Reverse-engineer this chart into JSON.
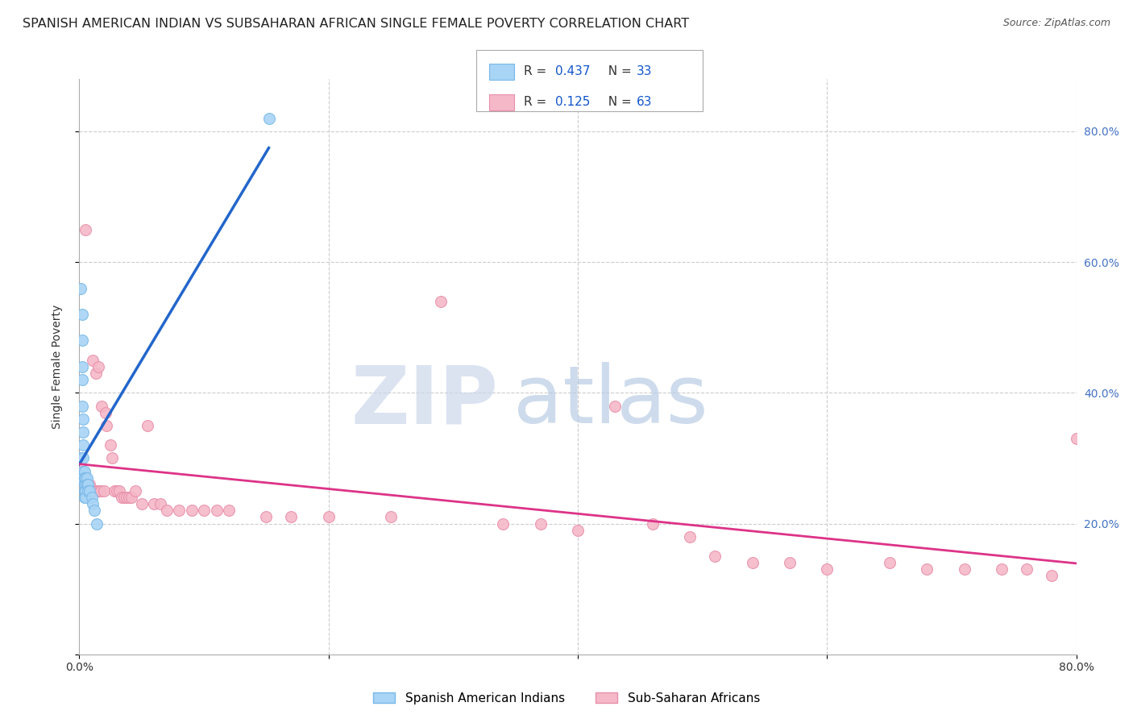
{
  "title": "SPANISH AMERICAN INDIAN VS SUBSAHARAN AFRICAN SINGLE FEMALE POVERTY CORRELATION CHART",
  "source": "Source: ZipAtlas.com",
  "ylabel": "Single Female Poverty",
  "series1_label": "Spanish American Indians",
  "series2_label": "Sub-Saharan Africans",
  "series1_color": "#a8d4f5",
  "series2_color": "#f5b8c8",
  "series1_edge_color": "#7ab8e8",
  "series2_edge_color": "#e890aa",
  "trend1_color": "#2266cc",
  "trend2_color": "#dd3388",
  "watermark_zip_color": "#ccd8ec",
  "watermark_atlas_color": "#b8cce4",
  "grid_color": "#cccccc",
  "background_color": "#ffffff",
  "title_fontsize": 11.5,
  "axis_label_fontsize": 10,
  "tick_fontsize": 10,
  "right_tick_color": "#4472C4",
  "xlim": [
    0.0,
    0.8
  ],
  "ylim": [
    0.0,
    0.88
  ],
  "xticks": [
    0.0,
    0.2,
    0.4,
    0.6,
    0.8
  ],
  "yticks": [
    0.0,
    0.2,
    0.4,
    0.6,
    0.8
  ],
  "legend_R1": "0.437",
  "legend_N1": "33",
  "legend_R2": "0.125",
  "legend_N2": "63",
  "legend_text_color": "#333333",
  "legend_val_color": "#1155cc",
  "series1_x": [
    0.001,
    0.001,
    0.001,
    0.002,
    0.002,
    0.002,
    0.002,
    0.002,
    0.003,
    0.003,
    0.003,
    0.003,
    0.003,
    0.003,
    0.004,
    0.004,
    0.004,
    0.004,
    0.004,
    0.005,
    0.005,
    0.005,
    0.005,
    0.006,
    0.006,
    0.007,
    0.007,
    0.008,
    0.01,
    0.011,
    0.012,
    0.014,
    0.152
  ],
  "series1_y": [
    0.56,
    0.3,
    0.27,
    0.52,
    0.48,
    0.44,
    0.42,
    0.38,
    0.36,
    0.34,
    0.32,
    0.3,
    0.28,
    0.27,
    0.28,
    0.27,
    0.26,
    0.25,
    0.24,
    0.27,
    0.26,
    0.25,
    0.24,
    0.27,
    0.26,
    0.26,
    0.25,
    0.25,
    0.24,
    0.23,
    0.22,
    0.2,
    0.82
  ],
  "series2_x": [
    0.002,
    0.003,
    0.004,
    0.005,
    0.006,
    0.007,
    0.008,
    0.009,
    0.01,
    0.011,
    0.012,
    0.013,
    0.014,
    0.015,
    0.016,
    0.017,
    0.018,
    0.02,
    0.021,
    0.022,
    0.025,
    0.026,
    0.028,
    0.03,
    0.032,
    0.034,
    0.036,
    0.038,
    0.04,
    0.042,
    0.045,
    0.05,
    0.055,
    0.06,
    0.065,
    0.07,
    0.08,
    0.09,
    0.1,
    0.11,
    0.12,
    0.15,
    0.17,
    0.2,
    0.25,
    0.29,
    0.34,
    0.37,
    0.4,
    0.43,
    0.46,
    0.49,
    0.51,
    0.54,
    0.57,
    0.6,
    0.65,
    0.68,
    0.71,
    0.74,
    0.76,
    0.78,
    0.8
  ],
  "series2_y": [
    0.28,
    0.27,
    0.27,
    0.65,
    0.26,
    0.26,
    0.26,
    0.25,
    0.25,
    0.45,
    0.25,
    0.43,
    0.25,
    0.44,
    0.25,
    0.25,
    0.38,
    0.25,
    0.37,
    0.35,
    0.32,
    0.3,
    0.25,
    0.25,
    0.25,
    0.24,
    0.24,
    0.24,
    0.24,
    0.24,
    0.25,
    0.23,
    0.35,
    0.23,
    0.23,
    0.22,
    0.22,
    0.22,
    0.22,
    0.22,
    0.22,
    0.21,
    0.21,
    0.21,
    0.21,
    0.54,
    0.2,
    0.2,
    0.19,
    0.38,
    0.2,
    0.18,
    0.15,
    0.14,
    0.14,
    0.13,
    0.14,
    0.13,
    0.13,
    0.13,
    0.13,
    0.12,
    0.33
  ]
}
